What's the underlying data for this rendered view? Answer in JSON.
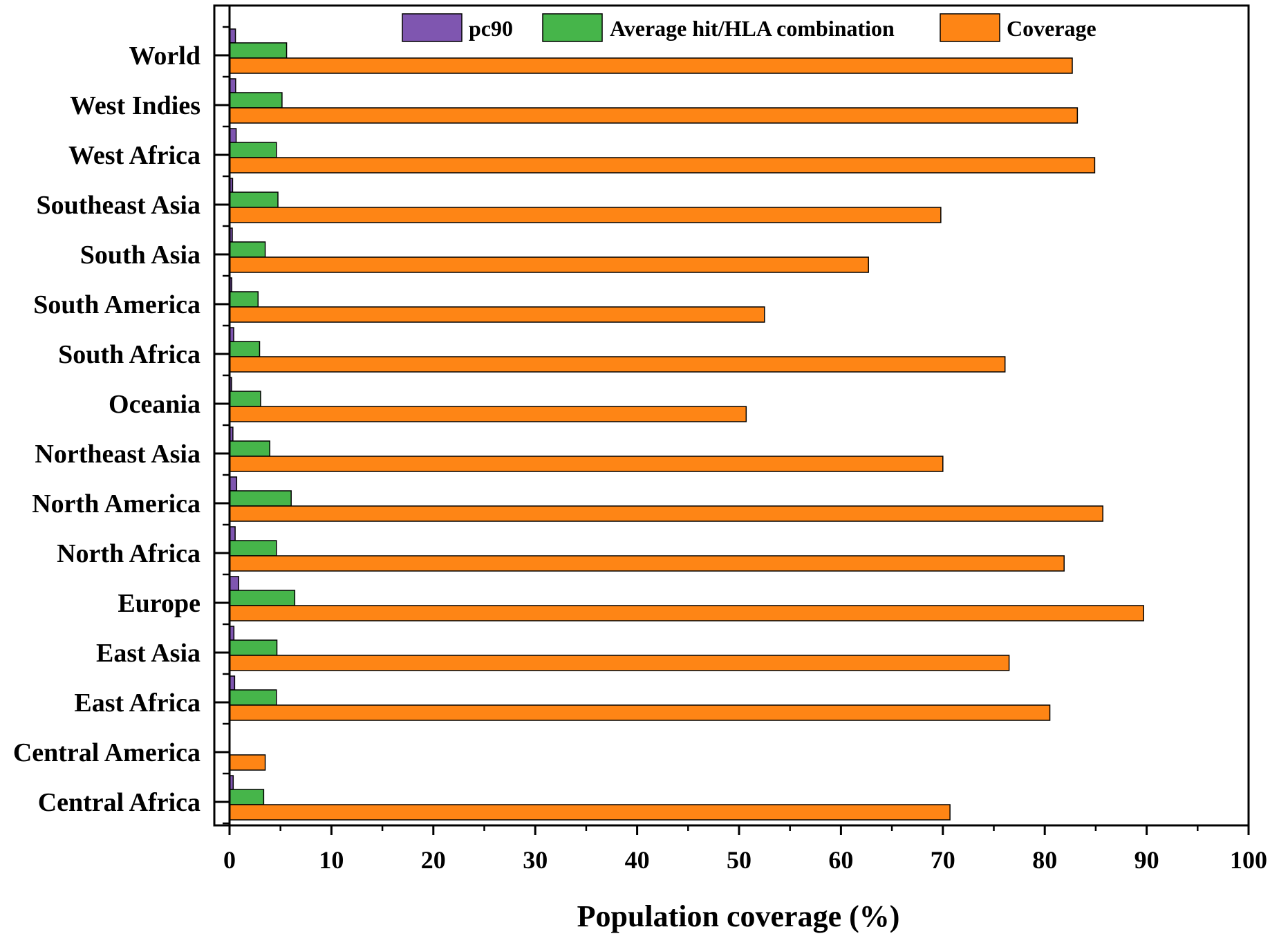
{
  "chart_data": {
    "type": "bar",
    "orientation": "horizontal",
    "title": "",
    "xlabel": "Population coverage (%)",
    "ylabel": "",
    "xlim": [
      0,
      100
    ],
    "x_ticks": [
      0,
      10,
      20,
      30,
      40,
      50,
      60,
      70,
      80,
      90,
      100
    ],
    "grid": false,
    "legend_position": "top",
    "categories": [
      "World",
      "West Indies",
      "West Africa",
      "Southeast Asia",
      "South Asia",
      "South America",
      "South Africa",
      "Oceania",
      "Northeast Asia",
      "North America",
      "North Africa",
      "Europe",
      "East Asia",
      "East Africa",
      "Central America",
      "Central Africa"
    ],
    "series": [
      {
        "name": "pc90",
        "color": "#7f56b0",
        "values": [
          0.58,
          0.6,
          0.65,
          0.3,
          0.27,
          0.22,
          0.41,
          0.2,
          0.33,
          0.7,
          0.55,
          0.9,
          0.43,
          0.5,
          0.0,
          0.36
        ]
      },
      {
        "name": "Average hit/HLA combination",
        "color": "#46b54a",
        "values": [
          5.6,
          5.15,
          4.6,
          4.75,
          3.5,
          2.8,
          2.95,
          3.05,
          3.95,
          6.05,
          4.6,
          6.4,
          4.65,
          4.6,
          0.0,
          3.35
        ]
      },
      {
        "name": "Coverage",
        "color": "#fe8515",
        "values": [
          82.7,
          83.2,
          84.9,
          69.8,
          62.7,
          52.5,
          76.1,
          50.7,
          70.0,
          85.7,
          81.9,
          89.7,
          76.5,
          80.5,
          3.5,
          70.7
        ]
      }
    ]
  }
}
